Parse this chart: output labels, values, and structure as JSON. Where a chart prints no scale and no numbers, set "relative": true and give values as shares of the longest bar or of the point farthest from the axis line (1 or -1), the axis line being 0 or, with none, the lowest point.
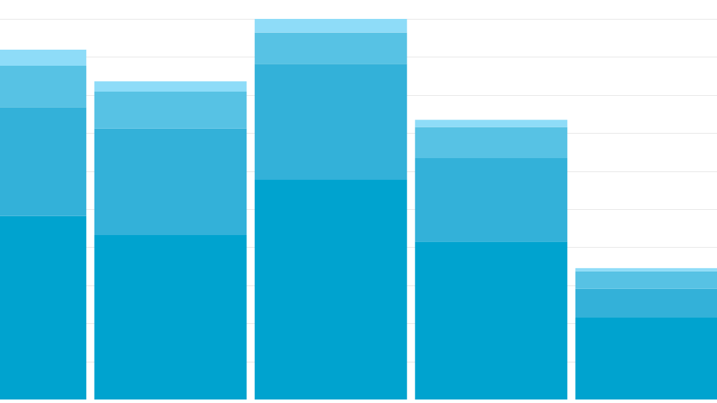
{
  "chart_data": {
    "type": "bar",
    "stacked": true,
    "relative": true,
    "grid": "y",
    "categories": [
      null,
      null,
      null,
      null,
      null
    ],
    "series": [
      {
        "color": "#00a3cf",
        "values": [
          0.482,
          0.432,
          0.577,
          0.415,
          0.215
        ]
      },
      {
        "color": "#33b1d9",
        "values": [
          0.286,
          0.28,
          0.305,
          0.219,
          0.076
        ]
      },
      {
        "color": "#57c2e4",
        "values": [
          0.109,
          0.097,
          0.082,
          0.082,
          0.046
        ]
      },
      {
        "color": "#8edcf8",
        "values": [
          0.042,
          0.027,
          0.036,
          0.019,
          0.008
        ]
      }
    ]
  }
}
